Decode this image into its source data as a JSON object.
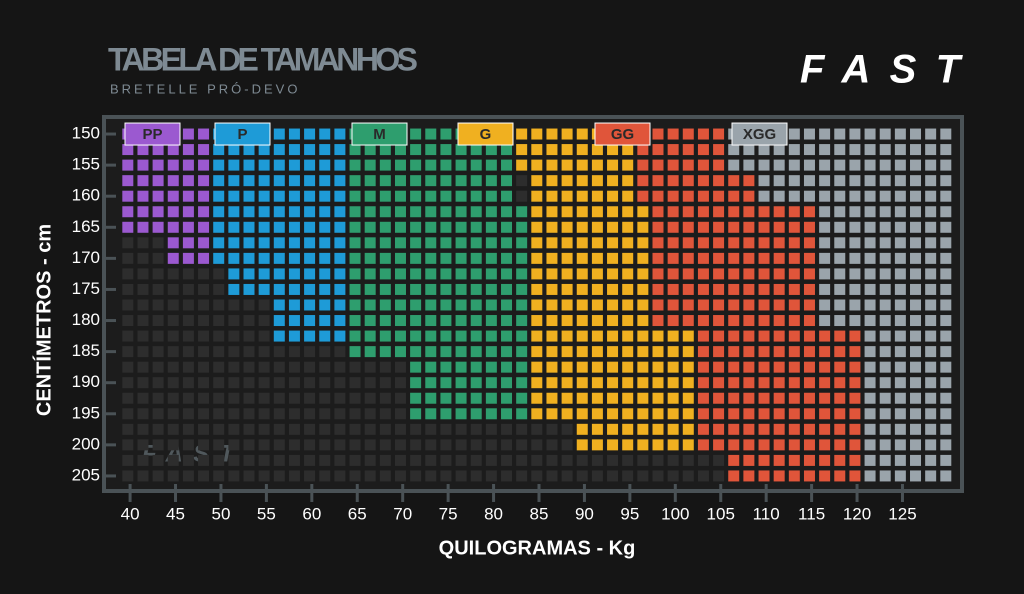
{
  "chart_data": {
    "type": "size-grid",
    "title": "TABELA DE TAMANHOS",
    "subtitle": "BRETELLE PRÓ-DEVO",
    "logo": "FAST",
    "x_label": "QUILOGRAMAS - Kg",
    "y_label": "CENTÍMETROS - cm",
    "xlim": [
      39,
      131
    ],
    "ylim": [
      148,
      208
    ],
    "xticks": [
      40,
      45,
      50,
      55,
      60,
      65,
      70,
      75,
      80,
      85,
      90,
      95,
      100,
      105,
      110,
      115,
      120,
      125
    ],
    "yticks": [
      150,
      155,
      160,
      165,
      170,
      175,
      180,
      185,
      190,
      195,
      200,
      205
    ],
    "series": [
      {
        "name": "PP",
        "color": "#9b59d0",
        "ranges": [
          {
            "y": [
              150,
              165
            ],
            "x": [
              39.5,
              49
            ]
          },
          {
            "y": [
              167.5,
              170
            ],
            "x": [
              44,
              49
            ]
          }
        ]
      },
      {
        "name": "P",
        "color": "#1e9bd7",
        "ranges": [
          {
            "y": [
              150,
              170
            ],
            "x": [
              49,
              64
            ]
          },
          {
            "y": [
              172.5,
              175
            ],
            "x": [
              51,
              64
            ]
          },
          {
            "y": [
              177.5,
              182.5
            ],
            "x": [
              56,
              64
            ]
          }
        ]
      },
      {
        "name": "M",
        "color": "#2e9e6e",
        "ranges": [
          {
            "y": [
              150,
              160
            ],
            "x": [
              64,
              82
            ]
          },
          {
            "y": [
              162.5,
              185
            ],
            "x": [
              64,
              84
            ]
          },
          {
            "y": [
              187.5,
              195
            ],
            "x": [
              71,
              84
            ]
          }
        ]
      },
      {
        "name": "G",
        "color": "#f0b020",
        "ranges": [
          {
            "y": [
              150,
              155
            ],
            "x": [
              82,
              96
            ]
          },
          {
            "y": [
              157.5,
              180
            ],
            "x": [
              84,
              98
            ]
          },
          {
            "y": [
              182.5,
              195
            ],
            "x": [
              84,
              102
            ]
          },
          {
            "y": [
              197.5,
              200
            ],
            "x": [
              89,
              102
            ]
          }
        ]
      },
      {
        "name": "GG",
        "color": "#e0553a",
        "ranges": [
          {
            "y": [
              150,
              155
            ],
            "x": [
              96,
              106
            ]
          },
          {
            "y": [
              157.5,
              160
            ],
            "x": [
              96,
              109
            ]
          },
          {
            "y": [
              162.5,
              180
            ],
            "x": [
              98,
              115
            ]
          },
          {
            "y": [
              182.5,
              200
            ],
            "x": [
              102,
              120
            ]
          },
          {
            "y": [
              202.5,
              205
            ],
            "x": [
              105,
              120
            ]
          }
        ]
      },
      {
        "name": "XGG",
        "color": "#9aa4ab",
        "ranges": [
          {
            "y": [
              150,
              155
            ],
            "x": [
              106,
              131
            ]
          },
          {
            "y": [
              157.5,
              160
            ],
            "x": [
              109,
              131
            ]
          },
          {
            "y": [
              162.5,
              180
            ],
            "x": [
              115,
              131
            ]
          },
          {
            "y": [
              182.5,
              205
            ],
            "x": [
              120,
              131
            ]
          }
        ]
      }
    ]
  }
}
